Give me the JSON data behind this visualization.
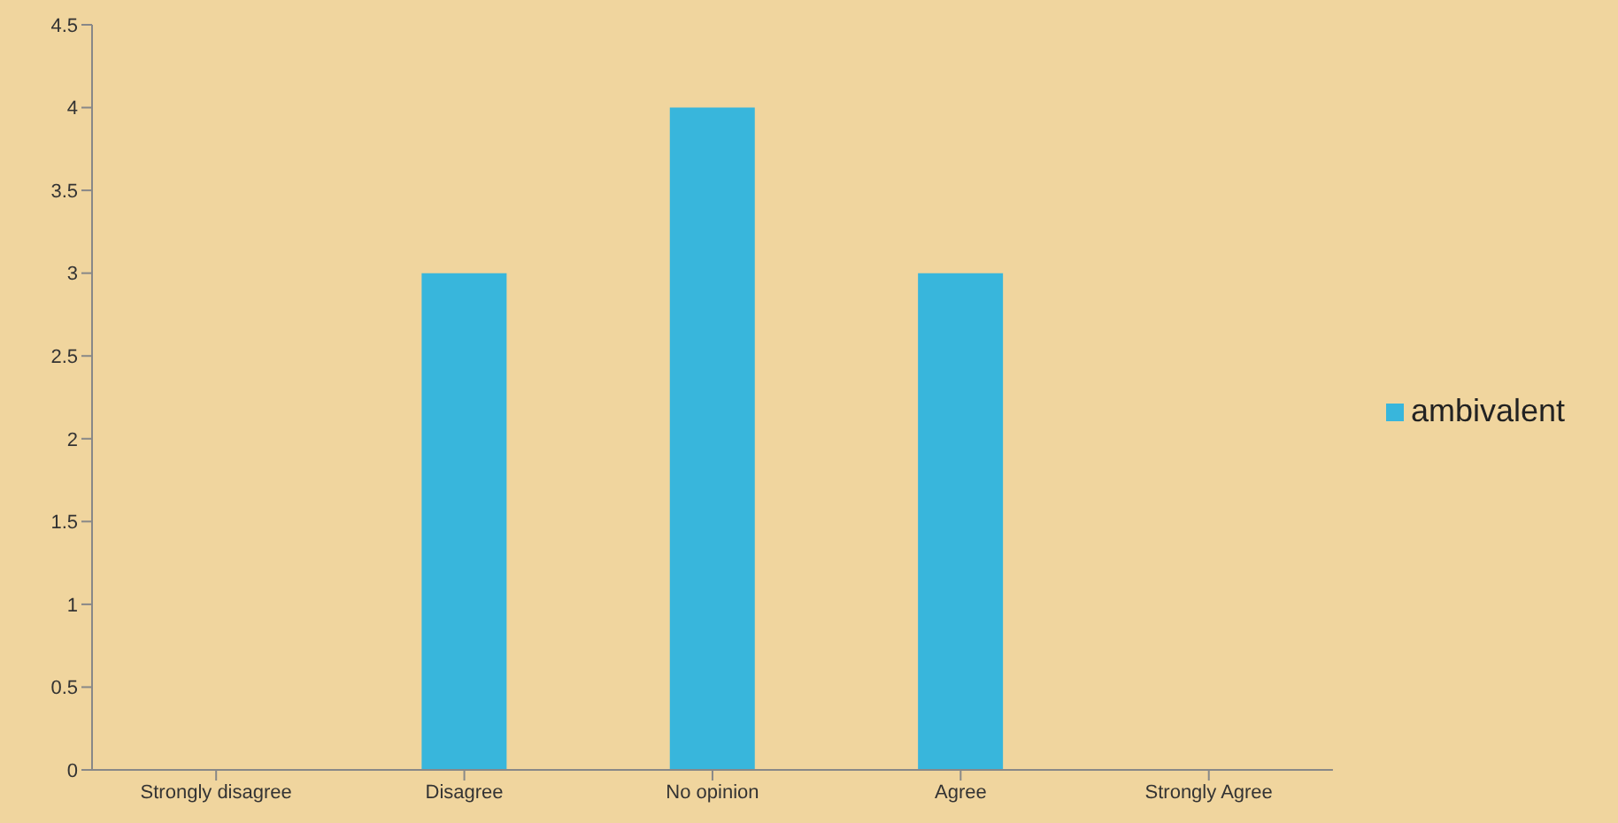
{
  "chart_data": {
    "type": "bar",
    "categories": [
      "Strongly disagree",
      "Disagree",
      "No opinion",
      "Agree",
      "Strongly Agree"
    ],
    "series": [
      {
        "name": "ambivalent",
        "color": "#38b6dc",
        "values": [
          0,
          3,
          4,
          3,
          0
        ]
      }
    ],
    "ylim": [
      0,
      4.5
    ],
    "yticks": [
      0,
      0.5,
      1,
      1.5,
      2,
      2.5,
      3,
      3.5,
      4,
      4.5
    ],
    "grid": false,
    "legend": "right"
  }
}
